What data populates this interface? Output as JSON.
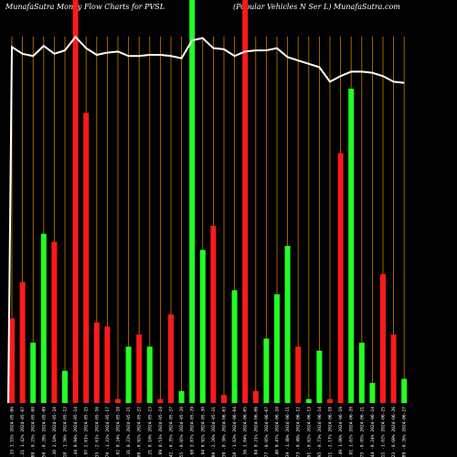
{
  "header": {
    "left_title": "MunafaSutra  Money  Flow  Charts for PVSL",
    "right_title": "(Popular Vehicles N  Ser L) MunafaSutra.com"
  },
  "colors": {
    "background": "#000000",
    "up": "#22ff22",
    "down": "#ff1a1a",
    "grid": "#cc7a00",
    "price_line": "#ffffff",
    "label": "#ffffff"
  },
  "chart_data": {
    "type": "bar",
    "title": "MunafaSutra  Money  Flow  Charts for PVSL",
    "subtitle": "(Popular Vehicles N  Ser L) MunafaSutra.com",
    "ylim": [
      0,
      100
    ],
    "categories": [
      "132.33 1.55% 2024-05-06",
      "134.21 1.42% 2024-05-07",
      "133.88 -0.25% 2024-05-08",
      "133.50 -0.28% 2024-05-09",
      "136.30 2.10% 2024-05-10",
      "134.18 -1.56% 2024-05-13",
      "135.44 0.94% 2024-05-14",
      "138.97 2.61% 2024-05-15",
      "135.35 -2.61% 2024-05-16",
      "133.70 -1.22% 2024-05-17",
      "134.02 0.24% 2024-05-18",
      "134.31 0.22% 2024-05-21",
      "133.08 -0.92% 2024-05-22",
      "133.21 0.10% 2024-05-23",
      "133.89 0.51% 2024-05-24",
      "133.42 -0.35% 2024-05-27",
      "132.55 -0.65% 2024-05-28",
      "137.68 3.87% 2024-05-29",
      "138.94 0.92% 2024-05-30",
      "135.80 -2.26% 2024-05-31",
      "135.39 -0.30% 2024-06-03",
      "133.18 -1.63% 2024-06-04",
      "134.56 1.04% 2024-06-05",
      "134.84 0.21% 2024-06-06",
      "134.77 -0.05% 2024-06-07",
      "135.40 0.47% 2024-06-10",
      "133.39 -1.48% 2024-06-11",
      "132.73 -0.49% 2024-06-12",
      "131.91 -0.62% 2024-06-13",
      "130.95 -0.73% 2024-06-14",
      "128.11 -2.17% 2024-06-18",
      "129.49 1.08% 2024-06-19",
      "130.81 1.02% 2024-06-20",
      "130.75 -0.05% 2024-06-21",
      "130.44 -0.24% 2024-06-24",
      "129.11 -1.02% 2024-06-25",
      "128.22 -0.69% 2024-06-26",
      "127.89 -0.26% 2024-06-27"
    ],
    "series": [
      {
        "direction": [
          "down",
          "down",
          "up",
          "up",
          "down",
          "up",
          "down",
          "down",
          "down",
          "down",
          "down",
          "up",
          "down",
          "up",
          "down",
          "down",
          "up",
          "up",
          "up",
          "down",
          "down",
          "up",
          "down",
          "down",
          "up",
          "up",
          "up",
          "down",
          "up",
          "up",
          "down",
          "down",
          "up",
          "up",
          "up",
          "down",
          "down",
          "up"
        ],
        "values": [
          21,
          30,
          15,
          42,
          40,
          8,
          100,
          72,
          20,
          19,
          1,
          14,
          17,
          14,
          1,
          22,
          3,
          100,
          38,
          44,
          2,
          28,
          100,
          3,
          16,
          27,
          39,
          14,
          1,
          13,
          1,
          62,
          78,
          15,
          5,
          32,
          17,
          6
        ]
      }
    ],
    "price_line": [
      131.8,
      131.2,
      131.0,
      131.9,
      131.2,
      131.5,
      132.7,
      131.7,
      131.1,
      131.3,
      131.4,
      131.0,
      131.0,
      131.1,
      131.1,
      131.0,
      130.8,
      132.4,
      132.6,
      131.7,
      131.6,
      131.0,
      131.4,
      131.5,
      131.5,
      131.7,
      130.9,
      130.6,
      130.3,
      130.0,
      128.7,
      129.2,
      129.6,
      129.6,
      129.5,
      129.2,
      128.7,
      128.6
    ],
    "price_range": [
      100,
      136
    ],
    "grid": "vertical"
  }
}
